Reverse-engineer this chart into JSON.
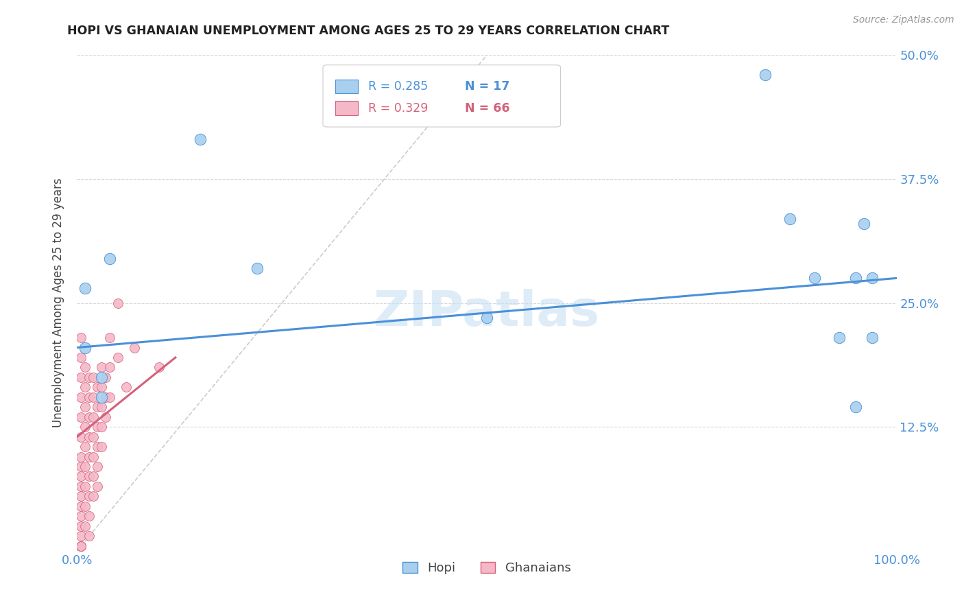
{
  "title": "HOPI VS GHANAIAN UNEMPLOYMENT AMONG AGES 25 TO 29 YEARS CORRELATION CHART",
  "source": "Source: ZipAtlas.com",
  "ylabel": "Unemployment Among Ages 25 to 29 years",
  "xlim": [
    0,
    1.0
  ],
  "ylim": [
    0,
    0.5
  ],
  "xticks": [
    0.0,
    0.125,
    0.25,
    0.375,
    0.5,
    0.625,
    0.75,
    0.875,
    1.0
  ],
  "xticklabels": [
    "0.0%",
    "",
    "",
    "",
    "",
    "",
    "",
    "",
    "100.0%"
  ],
  "yticks_right": [
    0.0,
    0.125,
    0.25,
    0.375,
    0.5
  ],
  "yticklabels_right": [
    "",
    "12.5%",
    "25.0%",
    "37.5%",
    "50.0%"
  ],
  "hopi_color": "#A8D0EE",
  "hopi_color_dark": "#4A90D9",
  "ghanaian_color": "#F5B8C8",
  "ghanaian_color_dark": "#D4607A",
  "hopi_R": 0.285,
  "hopi_N": 17,
  "ghanaian_R": 0.329,
  "ghanaian_N": 66,
  "watermark": "ZIPatlas",
  "hopi_scatter": [
    [
      0.01,
      0.205
    ],
    [
      0.01,
      0.265
    ],
    [
      0.15,
      0.415
    ],
    [
      0.04,
      0.295
    ],
    [
      0.22,
      0.285
    ],
    [
      0.5,
      0.235
    ],
    [
      0.84,
      0.48
    ],
    [
      0.87,
      0.335
    ],
    [
      0.9,
      0.275
    ],
    [
      0.93,
      0.215
    ],
    [
      0.95,
      0.145
    ],
    [
      0.95,
      0.275
    ],
    [
      0.96,
      0.33
    ],
    [
      0.97,
      0.275
    ],
    [
      0.97,
      0.215
    ],
    [
      0.03,
      0.175
    ],
    [
      0.03,
      0.155
    ]
  ],
  "ghanaian_scatter": [
    [
      0.005,
      0.215
    ],
    [
      0.005,
      0.195
    ],
    [
      0.005,
      0.175
    ],
    [
      0.005,
      0.155
    ],
    [
      0.005,
      0.135
    ],
    [
      0.005,
      0.115
    ],
    [
      0.005,
      0.095
    ],
    [
      0.005,
      0.085
    ],
    [
      0.005,
      0.075
    ],
    [
      0.005,
      0.065
    ],
    [
      0.005,
      0.055
    ],
    [
      0.005,
      0.045
    ],
    [
      0.005,
      0.035
    ],
    [
      0.005,
      0.025
    ],
    [
      0.005,
      0.015
    ],
    [
      0.005,
      0.005
    ],
    [
      0.01,
      0.185
    ],
    [
      0.01,
      0.165
    ],
    [
      0.01,
      0.145
    ],
    [
      0.01,
      0.125
    ],
    [
      0.01,
      0.105
    ],
    [
      0.01,
      0.085
    ],
    [
      0.01,
      0.065
    ],
    [
      0.01,
      0.045
    ],
    [
      0.01,
      0.025
    ],
    [
      0.015,
      0.175
    ],
    [
      0.015,
      0.155
    ],
    [
      0.015,
      0.135
    ],
    [
      0.015,
      0.115
    ],
    [
      0.015,
      0.095
    ],
    [
      0.015,
      0.075
    ],
    [
      0.015,
      0.055
    ],
    [
      0.015,
      0.035
    ],
    [
      0.015,
      0.015
    ],
    [
      0.02,
      0.175
    ],
    [
      0.02,
      0.155
    ],
    [
      0.02,
      0.135
    ],
    [
      0.02,
      0.115
    ],
    [
      0.02,
      0.095
    ],
    [
      0.02,
      0.075
    ],
    [
      0.02,
      0.055
    ],
    [
      0.025,
      0.165
    ],
    [
      0.025,
      0.145
    ],
    [
      0.025,
      0.125
    ],
    [
      0.025,
      0.105
    ],
    [
      0.025,
      0.085
    ],
    [
      0.025,
      0.065
    ],
    [
      0.03,
      0.185
    ],
    [
      0.03,
      0.165
    ],
    [
      0.03,
      0.145
    ],
    [
      0.03,
      0.125
    ],
    [
      0.03,
      0.105
    ],
    [
      0.035,
      0.175
    ],
    [
      0.035,
      0.155
    ],
    [
      0.035,
      0.135
    ],
    [
      0.04,
      0.215
    ],
    [
      0.04,
      0.185
    ],
    [
      0.04,
      0.155
    ],
    [
      0.05,
      0.25
    ],
    [
      0.05,
      0.195
    ],
    [
      0.06,
      0.165
    ],
    [
      0.07,
      0.205
    ],
    [
      0.1,
      0.185
    ],
    [
      0.005,
      0.005
    ],
    [
      0.005,
      0.005
    ],
    [
      0.005,
      0.005
    ]
  ],
  "hopi_trendline": [
    [
      0.0,
      0.205
    ],
    [
      1.0,
      0.275
    ]
  ],
  "ghanaian_trendline": [
    [
      0.0,
      0.115
    ],
    [
      0.12,
      0.195
    ]
  ],
  "diagonal_line": [
    [
      0.0,
      0.0
    ],
    [
      0.5,
      0.5
    ]
  ],
  "background_color": "#FFFFFF",
  "grid_color": "#D8D8D8",
  "title_color": "#222222",
  "axis_color": "#4A90D9"
}
